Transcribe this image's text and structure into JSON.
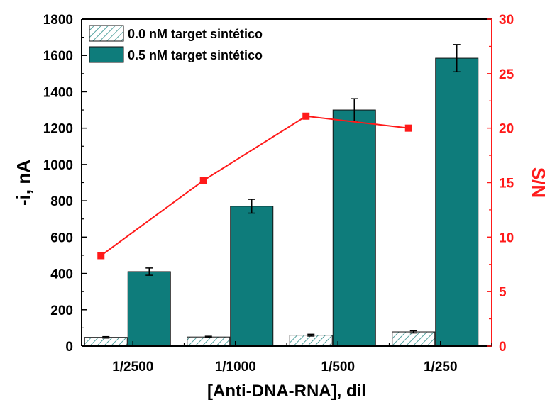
{
  "chart_data": {
    "type": "bar",
    "categories": [
      "1/2500",
      "1/1000",
      "1/500",
      "1/250"
    ],
    "xlabel": "[Anti-DNA-RNA], dil",
    "ylabel": "-i, nA",
    "y2label": "S/N",
    "ylim": [
      0,
      1800
    ],
    "y2lim": [
      0,
      30
    ],
    "yticks": [
      0,
      200,
      400,
      600,
      800,
      1000,
      1200,
      1400,
      1600,
      1800
    ],
    "y2ticks": [
      0,
      5,
      10,
      15,
      20,
      25,
      30
    ],
    "legend_position": "top-left",
    "series": [
      {
        "name": "0.0 nM target sintético",
        "values": [
          48,
          50,
          60,
          78
        ],
        "errors": [
          4,
          4,
          5,
          6
        ],
        "style": "hatched",
        "color": "#2a8c88"
      },
      {
        "name": "0.5 nM target sintético",
        "values": [
          410,
          770,
          1300,
          1585
        ],
        "errors": [
          20,
          38,
          62,
          75
        ],
        "style": "solid",
        "color": "#0e7c7b"
      }
    ],
    "line_series": {
      "axis": "right",
      "values": [
        8.3,
        15.2,
        21.1,
        20.0
      ],
      "color": "#ff1a1a",
      "marker": "square"
    },
    "axis_colors": {
      "left": "#000000",
      "right": "#ff1a1a"
    },
    "grid": false
  }
}
